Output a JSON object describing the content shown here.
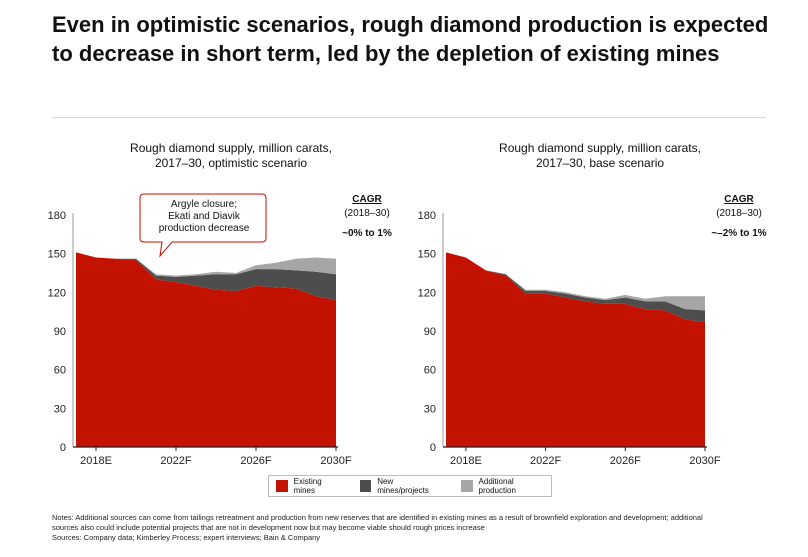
{
  "headline": "Even in optimistic scenarios, rough diamond production is expected to decrease in short term, led by the depletion of existing mines",
  "colors": {
    "existing": "#c41200",
    "new_mines": "#4d4d4d",
    "additional": "#a6a6a6",
    "callout_border": "#c41200"
  },
  "legend": [
    {
      "label": "Existing mines",
      "color": "#c41200"
    },
    {
      "label": "New mines/projects",
      "color": "#4d4d4d"
    },
    {
      "label": "Additional production",
      "color": "#a6a6a6"
    }
  ],
  "notes": {
    "line1": "Notes: Additional sources can come from tailings retreatment and production from new reserves that are identified in existing mines as a result of brownfield exploration and development; additional",
    "line2": "sources also could include potential projects that are not in development now but may become viable should rough prices increase",
    "line3": "Sources: Company data; Kimberley Process; expert interviews; Bain & Company"
  },
  "chart_data": [
    {
      "type": "area",
      "stacked": true,
      "title_line1": "Rough diamond supply, million carats,",
      "title_line2": "2017–30, optimistic scenario",
      "x": [
        "2017",
        "2018E",
        "2019",
        "2020",
        "2021F",
        "2022F",
        "2023F",
        "2024F",
        "2025F",
        "2026F",
        "2027F",
        "2028F",
        "2029F",
        "2030F"
      ],
      "x_tick_labels": [
        "2018E",
        "2022F",
        "2026F",
        "2030F"
      ],
      "y_ticks": [
        0,
        30,
        60,
        90,
        120,
        150,
        180
      ],
      "ylim": [
        0,
        180
      ],
      "series": [
        {
          "name": "Existing mines",
          "values": [
            151,
            147,
            146,
            145,
            130,
            128,
            125,
            122,
            121,
            125,
            124,
            123,
            117,
            114
          ]
        },
        {
          "name": "New mines/projects",
          "values": [
            0,
            0,
            0,
            1,
            3,
            4,
            8,
            12,
            13,
            13,
            14,
            14,
            19,
            20
          ]
        },
        {
          "name": "Additional production",
          "values": [
            0,
            0,
            0,
            0,
            1,
            1,
            1,
            2,
            1,
            3,
            5,
            9,
            11,
            12
          ]
        }
      ],
      "cagr_label": "CAGR",
      "cagr_period": "(2018–30)",
      "cagr_value": "~0% to 1%",
      "annotation_line1": "Argyle closure;",
      "annotation_line2": "Ekati and Diavik",
      "annotation_line3": "production decrease"
    },
    {
      "type": "area",
      "stacked": true,
      "title_line1": "Rough diamond supply, million carats,",
      "title_line2": "2017–30, base scenario",
      "x": [
        "2017",
        "2018E",
        "2019",
        "2020",
        "2021F",
        "2022F",
        "2023F",
        "2024F",
        "2025F",
        "2026F",
        "2027F",
        "2028F",
        "2029F",
        "2030F"
      ],
      "x_tick_labels": [
        "2018E",
        "2022F",
        "2026F",
        "2030F"
      ],
      "y_ticks": [
        0,
        30,
        60,
        90,
        120,
        150,
        180
      ],
      "ylim": [
        0,
        180
      ],
      "series": [
        {
          "name": "Existing mines",
          "values": [
            151,
            147,
            137,
            133,
            119,
            119,
            116,
            113,
            111,
            111,
            107,
            106,
            99,
            97
          ]
        },
        {
          "name": "New mines/projects",
          "values": [
            0,
            0,
            0,
            1,
            2,
            2,
            3,
            3,
            3,
            5,
            6,
            7,
            8,
            9
          ]
        },
        {
          "name": "Additional production",
          "values": [
            0,
            0,
            0,
            0,
            1,
            1,
            1,
            1,
            1,
            2,
            2,
            4,
            10,
            11
          ]
        }
      ],
      "cagr_label": "CAGR",
      "cagr_period": "(2018–30)",
      "cagr_value": "~–2% to 1%"
    }
  ]
}
